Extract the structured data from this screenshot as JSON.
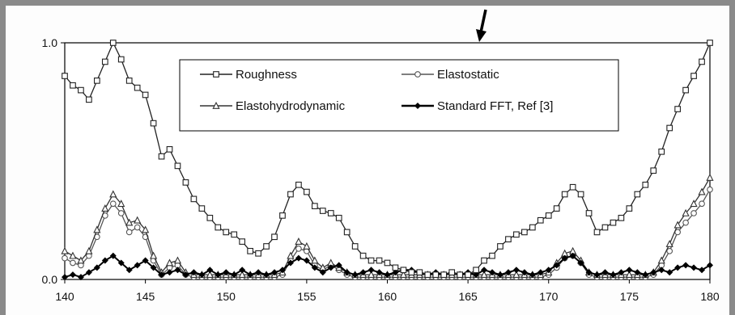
{
  "chart_data": {
    "type": "line",
    "title": "",
    "xlabel": "",
    "ylabel": "",
    "xlim": [
      140,
      180
    ],
    "ylim": [
      0,
      1
    ],
    "x_ticks": [
      "140",
      "145",
      "150",
      "155",
      "160",
      "165",
      "170",
      "175",
      "180"
    ],
    "y_ticks": [
      "0.0",
      "1.0"
    ],
    "grid": false,
    "legend": "inside-top-center",
    "annotations": [
      "arrow pointing down at about x=166"
    ],
    "series": [
      {
        "name": "Roughness",
        "marker": "square",
        "color": "#222222",
        "x": [
          140,
          140.5,
          141,
          141.5,
          142,
          142.5,
          143,
          143.5,
          144,
          144.5,
          145,
          145.5,
          146,
          146.5,
          147,
          147.5,
          148,
          148.5,
          149,
          149.5,
          150,
          150.5,
          151,
          151.5,
          152,
          152.5,
          153,
          153.5,
          154,
          154.5,
          155,
          155.5,
          156,
          156.5,
          157,
          157.5,
          158,
          158.5,
          159,
          159.5,
          160,
          160.5,
          161,
          161.5,
          162,
          162.5,
          163,
          163.5,
          164,
          164.5,
          165,
          165.5,
          166,
          166.5,
          167,
          167.5,
          168,
          168.5,
          169,
          169.5,
          170,
          170.5,
          171,
          171.5,
          172,
          172.5,
          173,
          173.5,
          174,
          174.5,
          175,
          175.5,
          176,
          176.5,
          177,
          177.5,
          178,
          178.5,
          179,
          179.5,
          180
        ],
        "values": [
          0.86,
          0.82,
          0.8,
          0.76,
          0.84,
          0.92,
          1.0,
          0.93,
          0.84,
          0.81,
          0.78,
          0.66,
          0.52,
          0.55,
          0.48,
          0.41,
          0.34,
          0.3,
          0.26,
          0.22,
          0.2,
          0.19,
          0.16,
          0.12,
          0.11,
          0.14,
          0.18,
          0.27,
          0.36,
          0.4,
          0.37,
          0.31,
          0.29,
          0.28,
          0.26,
          0.2,
          0.14,
          0.1,
          0.08,
          0.08,
          0.07,
          0.05,
          0.04,
          0.03,
          0.03,
          0.02,
          0.02,
          0.02,
          0.03,
          0.02,
          0.02,
          0.04,
          0.08,
          0.1,
          0.14,
          0.17,
          0.19,
          0.2,
          0.22,
          0.25,
          0.27,
          0.3,
          0.36,
          0.39,
          0.36,
          0.28,
          0.2,
          0.22,
          0.24,
          0.26,
          0.3,
          0.36,
          0.4,
          0.46,
          0.54,
          0.64,
          0.72,
          0.8,
          0.86,
          0.92,
          1.0
        ]
      },
      {
        "name": "Elastostatic",
        "marker": "circle",
        "color": "#555555",
        "x": [
          140,
          140.5,
          141,
          141.5,
          142,
          142.5,
          143,
          143.5,
          144,
          144.5,
          145,
          145.5,
          146,
          146.5,
          147,
          147.5,
          148,
          148.5,
          149,
          149.5,
          150,
          150.5,
          151,
          151.5,
          152,
          152.5,
          153,
          153.5,
          154,
          154.5,
          155,
          155.5,
          156,
          156.5,
          157,
          157.5,
          158,
          158.5,
          159,
          159.5,
          160,
          160.5,
          161,
          161.5,
          162,
          162.5,
          163,
          163.5,
          164,
          164.5,
          165,
          165.5,
          166,
          166.5,
          167,
          167.5,
          168,
          168.5,
          169,
          169.5,
          170,
          170.5,
          171,
          171.5,
          172,
          172.5,
          173,
          173.5,
          174,
          174.5,
          175,
          175.5,
          176,
          176.5,
          177,
          177.5,
          178,
          178.5,
          179,
          179.5,
          180
        ],
        "values": [
          0.09,
          0.07,
          0.06,
          0.1,
          0.18,
          0.27,
          0.32,
          0.28,
          0.2,
          0.22,
          0.18,
          0.08,
          0.02,
          0.05,
          0.06,
          0.02,
          0.01,
          0.01,
          0.01,
          0.01,
          0.01,
          0.01,
          0.01,
          0.01,
          0.01,
          0.01,
          0.01,
          0.02,
          0.08,
          0.13,
          0.12,
          0.06,
          0.04,
          0.06,
          0.04,
          0.02,
          0.01,
          0.01,
          0.01,
          0.01,
          0.01,
          0.01,
          0.01,
          0.01,
          0.01,
          0.01,
          0.01,
          0.01,
          0.01,
          0.01,
          0.01,
          0.01,
          0.01,
          0.01,
          0.01,
          0.01,
          0.01,
          0.01,
          0.01,
          0.01,
          0.02,
          0.05,
          0.09,
          0.1,
          0.07,
          0.02,
          0.01,
          0.01,
          0.01,
          0.01,
          0.01,
          0.01,
          0.01,
          0.02,
          0.06,
          0.12,
          0.2,
          0.24,
          0.28,
          0.32,
          0.38
        ]
      },
      {
        "name": "Elastohydrodynamic",
        "marker": "triangle",
        "color": "#333333",
        "x": [
          140,
          140.5,
          141,
          141.5,
          142,
          142.5,
          143,
          143.5,
          144,
          144.5,
          145,
          145.5,
          146,
          146.5,
          147,
          147.5,
          148,
          148.5,
          149,
          149.5,
          150,
          150.5,
          151,
          151.5,
          152,
          152.5,
          153,
          153.5,
          154,
          154.5,
          155,
          155.5,
          156,
          156.5,
          157,
          157.5,
          158,
          158.5,
          159,
          159.5,
          160,
          160.5,
          161,
          161.5,
          162,
          162.5,
          163,
          163.5,
          164,
          164.5,
          165,
          165.5,
          166,
          166.5,
          167,
          167.5,
          168,
          168.5,
          169,
          169.5,
          170,
          170.5,
          171,
          171.5,
          172,
          172.5,
          173,
          173.5,
          174,
          174.5,
          175,
          175.5,
          176,
          176.5,
          177,
          177.5,
          178,
          178.5,
          179,
          179.5,
          180
        ],
        "values": [
          0.12,
          0.1,
          0.08,
          0.12,
          0.21,
          0.3,
          0.36,
          0.32,
          0.24,
          0.25,
          0.21,
          0.1,
          0.03,
          0.07,
          0.08,
          0.03,
          0.02,
          0.02,
          0.02,
          0.02,
          0.02,
          0.02,
          0.02,
          0.02,
          0.02,
          0.02,
          0.02,
          0.03,
          0.1,
          0.16,
          0.14,
          0.08,
          0.05,
          0.07,
          0.05,
          0.03,
          0.02,
          0.02,
          0.02,
          0.02,
          0.02,
          0.02,
          0.02,
          0.02,
          0.02,
          0.02,
          0.02,
          0.02,
          0.02,
          0.02,
          0.02,
          0.02,
          0.02,
          0.02,
          0.02,
          0.02,
          0.02,
          0.02,
          0.02,
          0.02,
          0.03,
          0.07,
          0.11,
          0.12,
          0.08,
          0.03,
          0.02,
          0.02,
          0.02,
          0.02,
          0.02,
          0.02,
          0.02,
          0.03,
          0.08,
          0.15,
          0.23,
          0.28,
          0.32,
          0.37,
          0.43
        ]
      },
      {
        "name": "Standard FFT, Ref [3]",
        "marker": "diamond",
        "color": "#000000",
        "x": [
          140,
          140.5,
          141,
          141.5,
          142,
          142.5,
          143,
          143.5,
          144,
          144.5,
          145,
          145.5,
          146,
          146.5,
          147,
          147.5,
          148,
          148.5,
          149,
          149.5,
          150,
          150.5,
          151,
          151.5,
          152,
          152.5,
          153,
          153.5,
          154,
          154.5,
          155,
          155.5,
          156,
          156.5,
          157,
          157.5,
          158,
          158.5,
          159,
          159.5,
          160,
          160.5,
          161,
          161.5,
          162,
          162.5,
          163,
          163.5,
          164,
          164.5,
          165,
          165.5,
          166,
          166.5,
          167,
          167.5,
          168,
          168.5,
          169,
          169.5,
          170,
          170.5,
          171,
          171.5,
          172,
          172.5,
          173,
          173.5,
          174,
          174.5,
          175,
          175.5,
          176,
          176.5,
          177,
          177.5,
          178,
          178.5,
          179,
          179.5,
          180
        ],
        "values": [
          0.01,
          0.02,
          0.01,
          0.03,
          0.05,
          0.08,
          0.1,
          0.07,
          0.04,
          0.06,
          0.08,
          0.05,
          0.02,
          0.03,
          0.04,
          0.02,
          0.03,
          0.02,
          0.04,
          0.02,
          0.03,
          0.02,
          0.04,
          0.02,
          0.03,
          0.02,
          0.03,
          0.04,
          0.07,
          0.09,
          0.08,
          0.05,
          0.03,
          0.05,
          0.06,
          0.03,
          0.02,
          0.03,
          0.04,
          0.03,
          0.02,
          0.03,
          0.04,
          0.04,
          0.03,
          0.02,
          0.03,
          0.02,
          0.03,
          0.02,
          0.03,
          0.02,
          0.04,
          0.03,
          0.02,
          0.03,
          0.04,
          0.03,
          0.02,
          0.03,
          0.04,
          0.06,
          0.09,
          0.1,
          0.07,
          0.03,
          0.02,
          0.03,
          0.02,
          0.03,
          0.04,
          0.03,
          0.02,
          0.03,
          0.04,
          0.03,
          0.05,
          0.06,
          0.05,
          0.04,
          0.06
        ]
      }
    ]
  }
}
